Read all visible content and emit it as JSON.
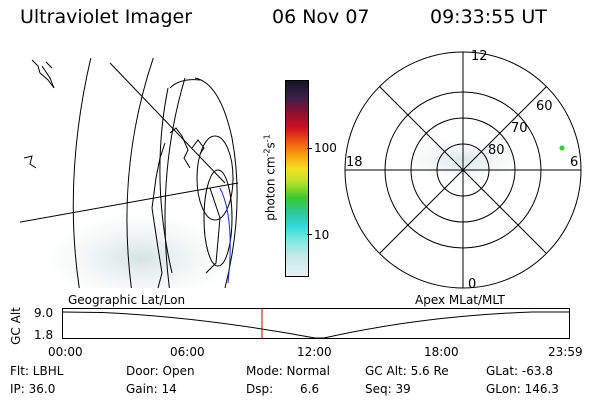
{
  "header": {
    "title": "Ultraviolet Imager",
    "date": "06 Nov 07",
    "time": "09:33:55 UT"
  },
  "colorbar": {
    "label": "photon cm",
    "label_exp1": "-2",
    "label_mid": "s",
    "label_exp2": "-1",
    "ticks": [
      "100",
      "10"
    ],
    "scale": "log"
  },
  "polar_plot": {
    "mlt_labels": {
      "top": "12",
      "bottom": "0",
      "left": "18",
      "right": "6"
    },
    "lat_labels": [
      "60",
      "70",
      "80"
    ]
  },
  "panel_labels": {
    "left": "Geographic Lat/Lon",
    "right": "Apex MLat/MLT"
  },
  "alt_plot": {
    "ylabel": "GC Alt",
    "yticks": [
      "9.0",
      "1.8"
    ],
    "xticks": [
      "00:00",
      "06:00",
      "12:00",
      "18:00",
      "23:59"
    ],
    "marker_color": "#cc0000"
  },
  "info": {
    "flt": "Flt: LBHL",
    "ip": "IP: 36.0",
    "door": "Door: Open",
    "gain": "Gain: 14",
    "mode": "Mode: Normal",
    "dsp_label": "Dsp:",
    "dsp_value": "6.6",
    "gcalt": "GC Alt: 5.6 Re",
    "seq": "Seq: 39",
    "glat": "GLat: -63.8",
    "glon": "GLon: 146.3"
  }
}
